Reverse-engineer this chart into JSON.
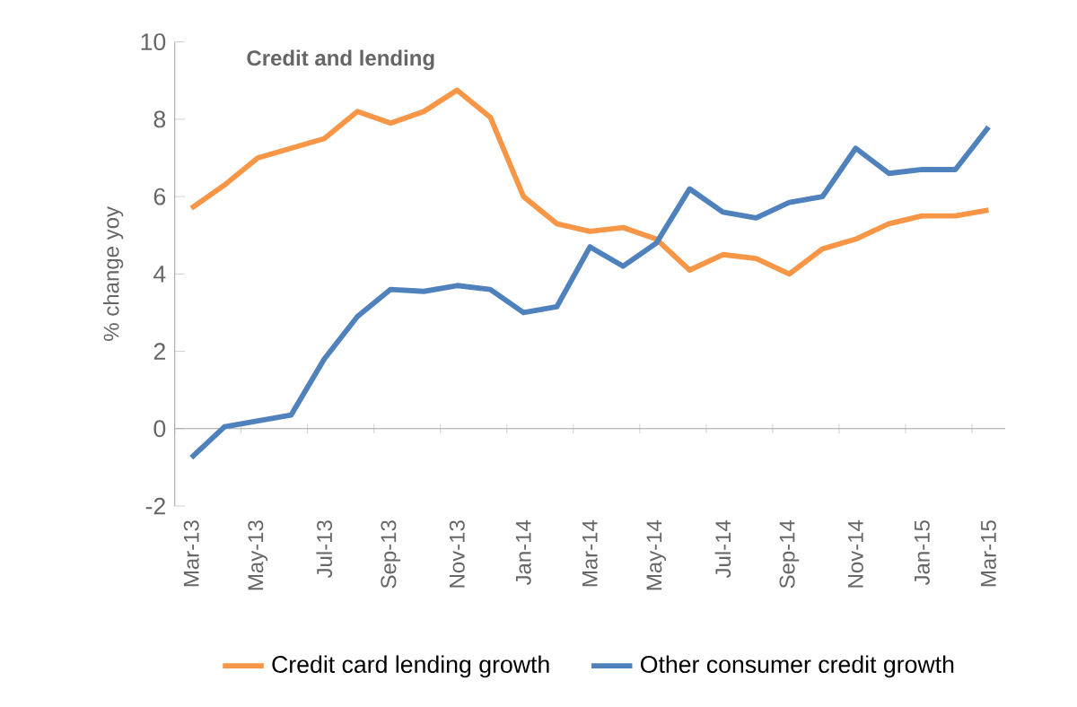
{
  "chart_data": {
    "type": "line",
    "title": "Credit and lending",
    "ylabel": "% change yoy",
    "categories": [
      "Mar-13",
      null,
      "May-13",
      null,
      "Jul-13",
      null,
      "Sep-13",
      null,
      "Nov-13",
      null,
      "Jan-14",
      null,
      "Mar-14",
      null,
      "May-14",
      null,
      "Jul-14",
      null,
      "Sep-14",
      null,
      "Nov-14",
      null,
      "Jan-15",
      null,
      "Mar-15"
    ],
    "series": [
      {
        "name": "Credit card lending growth",
        "color": "#f79646",
        "values": [
          5.7,
          6.3,
          7.0,
          7.25,
          7.5,
          8.2,
          7.9,
          8.2,
          8.75,
          8.05,
          6.0,
          5.3,
          5.1,
          5.2,
          4.9,
          4.1,
          4.5,
          4.4,
          4.0,
          4.65,
          4.9,
          5.3,
          5.5,
          5.5,
          5.65
        ]
      },
      {
        "name": "Other consumer credit growth",
        "color": "#4f81bd",
        "values": [
          -0.75,
          0.05,
          0.2,
          0.35,
          1.8,
          2.9,
          3.6,
          3.55,
          3.7,
          3.6,
          3.0,
          3.15,
          4.7,
          4.2,
          4.8,
          6.2,
          5.6,
          5.45,
          5.85,
          6.0,
          7.25,
          6.6,
          6.7,
          6.7,
          7.8
        ]
      }
    ],
    "ylim": [
      -2,
      10
    ],
    "yticks": [
      -2,
      0,
      2,
      4,
      6,
      8,
      10
    ],
    "legend": "bottom",
    "marker": "none",
    "line_style": "solid"
  }
}
